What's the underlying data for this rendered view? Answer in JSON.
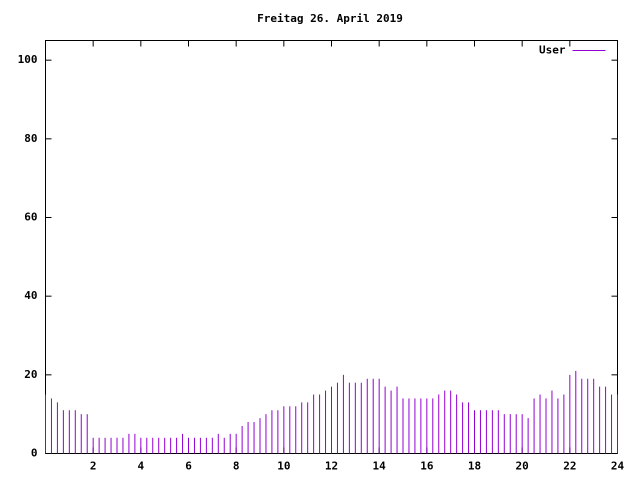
{
  "chart_data": {
    "type": "impulse",
    "title": "Freitag 26. April 2019",
    "series": [
      {
        "name": "User",
        "color": "#9400d3",
        "x": [
          0,
          0.25,
          0.5,
          0.75,
          1,
          1.25,
          1.5,
          1.75,
          2,
          2.25,
          2.5,
          2.75,
          3,
          3.25,
          3.5,
          3.75,
          4,
          4.25,
          4.5,
          4.75,
          5,
          5.25,
          5.5,
          5.75,
          6,
          6.25,
          6.5,
          6.75,
          7,
          7.25,
          7.5,
          7.75,
          8,
          8.25,
          8.5,
          8.75,
          9,
          9.25,
          9.5,
          9.75,
          10,
          10.25,
          10.5,
          10.75,
          11,
          11.25,
          11.5,
          11.75,
          12,
          12.25,
          12.5,
          12.75,
          13,
          13.25,
          13.5,
          13.75,
          14,
          14.25,
          14.5,
          14.75,
          15,
          15.25,
          15.5,
          15.75,
          16,
          16.25,
          16.5,
          16.75,
          17,
          17.25,
          17.5,
          17.75,
          18,
          18.25,
          18.5,
          18.75,
          19,
          19.25,
          19.5,
          19.75,
          20,
          20.25,
          20.5,
          20.75,
          21,
          21.25,
          21.5,
          21.75,
          22,
          22.25,
          22.5,
          22.75,
          23,
          23.25,
          23.5,
          23.75,
          24
        ],
        "values": [
          15,
          14,
          13,
          11,
          11,
          11,
          10,
          10,
          4,
          4,
          4,
          4,
          4,
          4,
          5,
          5,
          4,
          4,
          4,
          4,
          4,
          4,
          4,
          5,
          4,
          4,
          4,
          4,
          4,
          5,
          4,
          5,
          5,
          7,
          8,
          8,
          9,
          10,
          11,
          11,
          12,
          12,
          12,
          13,
          13,
          15,
          15,
          16,
          17,
          18,
          20,
          18,
          18,
          18,
          19,
          19,
          19,
          17,
          16,
          17,
          14,
          14,
          14,
          14,
          14,
          14,
          15,
          16,
          16,
          15,
          13,
          13,
          11,
          11,
          11,
          11,
          11,
          10,
          10,
          10,
          10,
          9,
          14,
          15,
          14,
          16,
          14,
          15,
          20,
          21,
          19,
          19,
          19,
          17,
          17,
          15,
          15
        ]
      }
    ],
    "xlim": [
      0,
      24
    ],
    "xticks": [
      2,
      4,
      6,
      8,
      10,
      12,
      14,
      16,
      18,
      20,
      22,
      24
    ],
    "ylim": [
      0,
      105
    ],
    "yticks": [
      0,
      20,
      40,
      60,
      80,
      100
    ],
    "legend": "top-right"
  }
}
